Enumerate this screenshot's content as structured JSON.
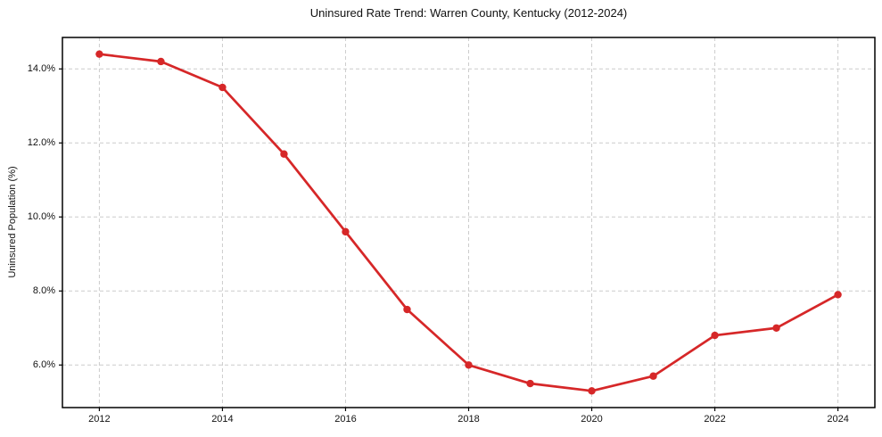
{
  "chart_data": {
    "type": "line",
    "title": "Uninsured Rate Trend: Warren County, Kentucky (2012-2024)",
    "xlabel": "",
    "ylabel": "Uninsured Population (%)",
    "x": [
      2012,
      2013,
      2014,
      2015,
      2016,
      2017,
      2018,
      2019,
      2020,
      2021,
      2022,
      2023,
      2024
    ],
    "values": [
      14.4,
      14.2,
      13.5,
      11.7,
      9.6,
      7.5,
      6.0,
      5.5,
      5.3,
      5.7,
      6.8,
      7.0,
      7.9
    ],
    "xlim": [
      2011.4,
      2024.6
    ],
    "ylim": [
      4.85,
      14.85
    ],
    "xticks": [
      2012,
      2014,
      2016,
      2018,
      2020,
      2022,
      2024
    ],
    "xtick_labels": [
      "2012",
      "2014",
      "2016",
      "2018",
      "2020",
      "2022",
      "2024"
    ],
    "yticks": [
      6,
      8,
      10,
      12,
      14
    ],
    "ytick_labels": [
      "6.0%",
      "8.0%",
      "10.0%",
      "12.0%",
      "14.0%"
    ],
    "grid": true,
    "grid_style": "dashed",
    "legend": "none",
    "marker": "circle",
    "colors": {
      "line": "#d62728",
      "marker": "#d62728",
      "grid": "#cccccc",
      "spine": "#000000",
      "tick": "#000000",
      "text": "#111111",
      "background": "#ffffff"
    }
  }
}
